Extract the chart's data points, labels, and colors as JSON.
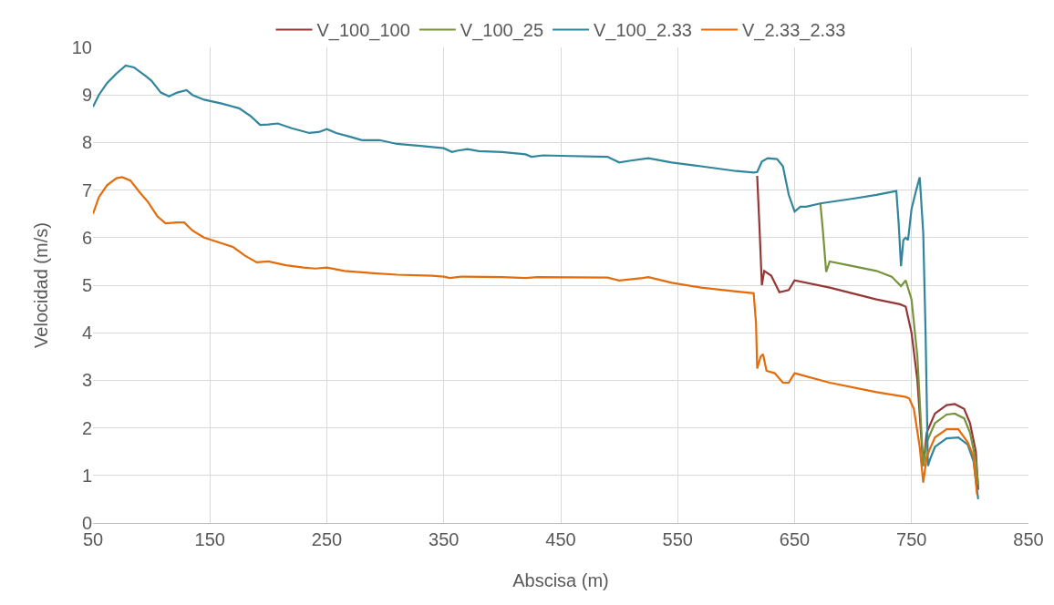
{
  "chart_data": {
    "type": "line",
    "xlabel": "Abscisa (m)",
    "ylabel": "Velocidad (m/s)",
    "xlim": [
      50,
      850
    ],
    "xticks": [
      50,
      150,
      250,
      350,
      450,
      550,
      650,
      750,
      850
    ],
    "ylim": [
      0,
      10
    ],
    "yticks": [
      0,
      1,
      2,
      3,
      4,
      5,
      6,
      7,
      8,
      9,
      10
    ],
    "grid": true,
    "legend": "top",
    "marker": "none",
    "line_style": "solid",
    "series": [
      {
        "name": "V_100_100",
        "color": "#953735",
        "x": [
          618,
          620,
          622,
          624,
          630,
          637,
          645,
          650,
          680,
          720,
          740,
          745,
          750,
          755,
          760,
          763,
          770,
          780,
          787,
          795,
          800,
          805,
          807
        ],
        "values": [
          7.3,
          6.2,
          5.0,
          5.3,
          5.2,
          4.85,
          4.9,
          5.1,
          4.95,
          4.7,
          4.6,
          4.55,
          4.0,
          3.0,
          1.2,
          1.9,
          2.3,
          2.48,
          2.5,
          2.4,
          2.1,
          1.5,
          0.7
        ]
      },
      {
        "name": "V_100_25",
        "color": "#77933c",
        "x": [
          672,
          674,
          677,
          680,
          700,
          720,
          733,
          741,
          745,
          750,
          755,
          760,
          763,
          770,
          780,
          787,
          795,
          800,
          805,
          807
        ],
        "values": [
          6.72,
          6.2,
          5.28,
          5.5,
          5.4,
          5.3,
          5.18,
          4.98,
          5.1,
          4.7,
          3.5,
          1.2,
          1.7,
          2.1,
          2.28,
          2.3,
          2.2,
          1.9,
          1.3,
          0.8
        ]
      },
      {
        "name": "V_100_2.33",
        "color": "#31859c",
        "x": [
          50,
          55,
          62,
          70,
          78,
          85,
          95,
          100,
          108,
          115,
          122,
          130,
          135,
          145,
          160,
          175,
          185,
          193,
          200,
          208,
          220,
          235,
          243,
          250,
          258,
          270,
          280,
          295,
          310,
          330,
          350,
          357,
          362,
          370,
          380,
          400,
          420,
          425,
          435,
          450,
          490,
          500,
          510,
          525,
          545,
          570,
          600,
          615,
          618,
          622,
          627,
          635,
          640,
          645,
          650,
          655,
          660,
          672,
          700,
          720,
          737,
          739,
          741,
          743,
          745,
          747,
          750,
          754,
          757,
          760,
          762,
          764,
          766,
          770,
          780,
          790,
          798,
          803,
          807
        ],
        "values": [
          8.75,
          9.0,
          9.25,
          9.45,
          9.62,
          9.58,
          9.4,
          9.3,
          9.05,
          8.97,
          9.05,
          9.1,
          9.0,
          8.9,
          8.82,
          8.72,
          8.55,
          8.37,
          8.38,
          8.4,
          8.3,
          8.2,
          8.22,
          8.28,
          8.2,
          8.12,
          8.05,
          8.05,
          7.97,
          7.93,
          7.88,
          7.8,
          7.83,
          7.86,
          7.82,
          7.8,
          7.75,
          7.7,
          7.73,
          7.72,
          7.7,
          7.58,
          7.62,
          7.67,
          7.58,
          7.5,
          7.4,
          7.37,
          7.38,
          7.6,
          7.67,
          7.65,
          7.5,
          6.9,
          6.55,
          6.65,
          6.65,
          6.72,
          6.82,
          6.9,
          6.98,
          6.3,
          5.4,
          5.95,
          6.0,
          5.95,
          6.6,
          7.0,
          7.27,
          6.1,
          4.0,
          1.2,
          1.35,
          1.6,
          1.78,
          1.8,
          1.65,
          1.3,
          0.5
        ]
      },
      {
        "name": "V_2.33_2.33",
        "color": "#e46c0a",
        "x": [
          50,
          55,
          62,
          70,
          75,
          82,
          90,
          97,
          105,
          112,
          122,
          128,
          135,
          145,
          160,
          170,
          180,
          190,
          200,
          215,
          230,
          240,
          250,
          265,
          290,
          310,
          340,
          350,
          355,
          365,
          400,
          420,
          430,
          490,
          500,
          520,
          525,
          545,
          570,
          600,
          615,
          617,
          618,
          621,
          623,
          626,
          633,
          640,
          645,
          650,
          680,
          720,
          745,
          748,
          752,
          757,
          760,
          763,
          770,
          780,
          790,
          798,
          803,
          806
        ],
        "values": [
          6.5,
          6.85,
          7.1,
          7.25,
          7.27,
          7.2,
          6.95,
          6.75,
          6.45,
          6.3,
          6.32,
          6.32,
          6.15,
          6.0,
          5.88,
          5.8,
          5.62,
          5.48,
          5.5,
          5.42,
          5.37,
          5.35,
          5.37,
          5.3,
          5.25,
          5.22,
          5.2,
          5.18,
          5.15,
          5.18,
          5.17,
          5.15,
          5.17,
          5.16,
          5.1,
          5.15,
          5.17,
          5.05,
          4.95,
          4.87,
          4.83,
          4.2,
          3.25,
          3.5,
          3.55,
          3.2,
          3.15,
          2.95,
          2.95,
          3.15,
          2.95,
          2.75,
          2.65,
          2.62,
          2.4,
          1.6,
          0.85,
          1.4,
          1.8,
          1.97,
          1.97,
          1.7,
          1.4,
          0.6
        ]
      }
    ]
  }
}
